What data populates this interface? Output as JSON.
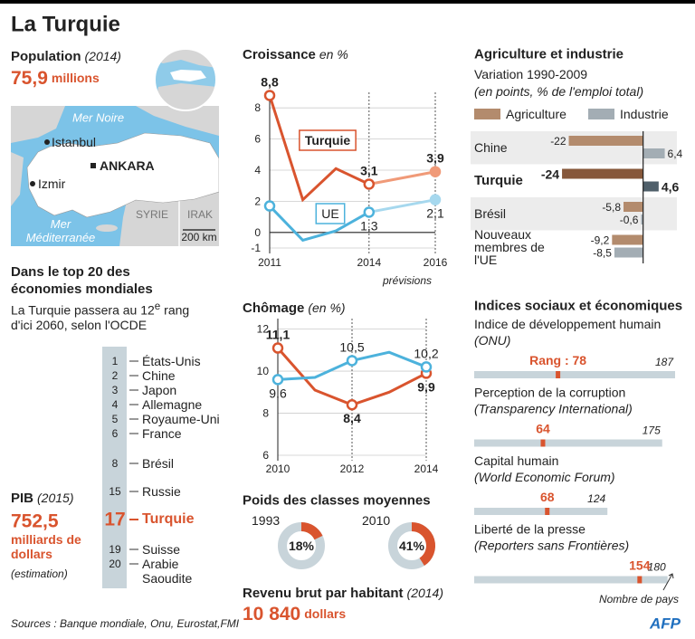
{
  "title": "La Turquie",
  "population": {
    "label": "Population",
    "year": "(2014)",
    "value": "75,9",
    "unit": "millions"
  },
  "map": {
    "sea": "Mer Noire",
    "cities": [
      "Istanbul",
      "Izmir"
    ],
    "capital": "ANKARA",
    "sea2": "Mer Méditerranée",
    "neighbors": [
      "SYRIE",
      "IRAK"
    ],
    "scale": "200 km"
  },
  "ranking": {
    "title": "Dans le top 20 des économies mondiales",
    "note": "La Turquie passera au 12",
    "note_sup": "e",
    "note_end": " rang d'ici 2060, selon l'OCDE",
    "ranks": [
      1,
      2,
      3,
      4,
      5,
      6,
      8,
      15,
      17,
      19,
      20
    ],
    "countries": [
      "États-Unis",
      "Chine",
      "Japon",
      "Allemagne",
      "Royaume-Uni",
      "France",
      "Brésil",
      "Russie",
      "Turquie",
      "Suisse",
      "Arabie Saoudite"
    ],
    "highlight": "Turquie"
  },
  "pib": {
    "label": "PIB",
    "year": "(2015)",
    "value": "752,5",
    "unit": "milliards de dollars",
    "note": "(estimation)"
  },
  "revenu": {
    "label": "Revenu brut par habitant",
    "year": "(2014)",
    "value": "10 840",
    "unit": "dollars"
  },
  "sources": "Sources : Banque mondiale, Onu, Eurostat,FMI",
  "logo": "AFP",
  "chart_data": [
    {
      "type": "line",
      "title": "Croissance",
      "unit": "en %",
      "x": [
        2011,
        2012,
        2013,
        2014,
        2016
      ],
      "xlim": [
        2011,
        2016
      ],
      "xticks": [
        2011,
        2014,
        2016
      ],
      "ylim": [
        -1,
        9
      ],
      "yticks": [
        -1,
        0,
        2,
        4,
        6,
        8
      ],
      "forecast_from": 2014,
      "annotation": "prévisions",
      "series": [
        {
          "name": "Turquie",
          "color": "#d9542e",
          "forecast_color": "#f09a78",
          "values": [
            8.8,
            2.1,
            4.1,
            3.1,
            3.9
          ],
          "value_labels": [
            "8,8",
            null,
            null,
            "3,1",
            "3,9"
          ]
        },
        {
          "name": "UE",
          "color": "#4cb2dc",
          "forecast_color": "#a6d8ee",
          "values": [
            1.7,
            -0.5,
            0.1,
            1.3,
            2.1
          ],
          "value_labels": [
            null,
            null,
            null,
            "1,3",
            "2,1"
          ]
        }
      ]
    },
    {
      "type": "line",
      "title": "Chômage",
      "unit": "(en %)",
      "x": [
        2010,
        2011,
        2012,
        2013,
        2014
      ],
      "xlim": [
        2010,
        2014
      ],
      "xticks": [
        2010,
        2012,
        2014
      ],
      "ylim": [
        6,
        12.5
      ],
      "yticks": [
        6,
        8,
        10,
        12
      ],
      "series": [
        {
          "color": "#d9542e",
          "values": [
            11.1,
            9.1,
            8.4,
            9.0,
            9.9
          ],
          "value_labels": [
            "11,1",
            null,
            "8,4",
            null,
            "9,9"
          ]
        },
        {
          "color": "#4cb2dc",
          "values": [
            9.6,
            9.7,
            10.5,
            10.9,
            10.2
          ],
          "value_labels": [
            "9,6",
            null,
            "10,5",
            null,
            "10,2"
          ]
        }
      ]
    },
    {
      "type": "hbar",
      "title": "Agriculture et industrie",
      "subtitle": "Variation 1990-2009",
      "note": "(en points, % de l'emploi total)",
      "categories": [
        "Chine",
        "Turquie",
        "Brésil",
        "Nouveaux membres de l'UE"
      ],
      "highlight": "Turquie",
      "xlim": [
        -50,
        10
      ],
      "series": [
        {
          "name": "Agriculture",
          "color": "#b38b6d",
          "highlight_color": "#86573a",
          "values": [
            -22,
            -24,
            -5.8,
            -9.2
          ],
          "value_labels": [
            "-22",
            "-24",
            "-5,8",
            "-9,2"
          ]
        },
        {
          "name": "Industrie",
          "color": "#a3adb4",
          "highlight_color": "#4f5f6a",
          "values": [
            6.4,
            4.6,
            -0.6,
            -8.5
          ],
          "value_labels": [
            "6,4",
            "4,6",
            "-0,6",
            "-8,5"
          ]
        }
      ]
    },
    {
      "type": "donut",
      "title": "Poids des classes moyennes",
      "categories": [
        "1993",
        "2010"
      ],
      "values": [
        18,
        41
      ],
      "value_labels": [
        "18%",
        "41%"
      ],
      "ylim": [
        0,
        100
      ],
      "color": "#d9542e",
      "track_color": "#c8d4da"
    },
    {
      "type": "rank",
      "title": "Indices sociaux et économiques",
      "categories": [
        "Indice de développement humain",
        "Perception de la corruption",
        "Capital humain",
        "Liberté de la presse"
      ],
      "sources": [
        "(ONU)",
        "(Transparency International)",
        "(World Economic Forum)",
        "(Reporters sans Frontières)"
      ],
      "values": [
        78,
        64,
        68,
        154
      ],
      "value_labels": [
        "Rang : 78",
        null,
        null,
        null
      ],
      "totals": [
        187,
        175,
        124,
        180
      ],
      "xlim": [
        0,
        187
      ],
      "annotation": "Nombre de pays",
      "color": "#d9542e",
      "bar_color": "#c8d4da"
    }
  ]
}
